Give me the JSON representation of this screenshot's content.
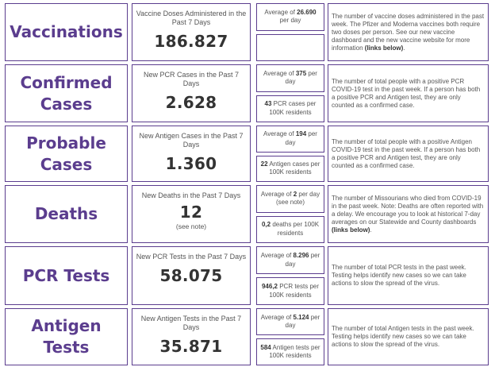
{
  "rows": [
    {
      "title_line1": "Vaccinations",
      "title_line2": "",
      "main_label": "Vaccine Doses Administered in the Past 7 Days",
      "main_value": "186.827",
      "main_note": "",
      "avg_prefix": "Average of ",
      "avg_value": "26.690",
      "avg_suffix": " per day",
      "avg_note": "",
      "per100k_value": "",
      "per100k_suffix": "",
      "desc_text": "The number of vaccine doses administered in the past week. The Pfizer and Moderna vaccines both require two doses per person. See our new vaccine dashboard and the new vaccine website for more information ",
      "desc_bold": "(links below)",
      "desc_end": "."
    },
    {
      "title_line1": "Confirmed",
      "title_line2": "Cases",
      "main_label": "New PCR Cases in the Past 7 Days",
      "main_value": "2.628",
      "main_note": "",
      "avg_prefix": "Average of ",
      "avg_value": "375",
      "avg_suffix": " per day",
      "avg_note": "",
      "per100k_value": "43",
      "per100k_suffix": " PCR cases per 100K residents",
      "desc_text": "The number of total people with a positive PCR COVID-19 test in the past week. If a person has both a positive PCR and Antigen test, they are only counted as a confirmed case.",
      "desc_bold": "",
      "desc_end": ""
    },
    {
      "title_line1": "Probable",
      "title_line2": "Cases",
      "main_label": "New Antigen Cases in the Past 7 Days",
      "main_value": "1.360",
      "main_note": "",
      "avg_prefix": "Average of ",
      "avg_value": "194",
      "avg_suffix": " per day",
      "avg_note": "",
      "per100k_value": "22",
      "per100k_suffix": " Antigen cases per 100K residents",
      "desc_text": "The number of total people with a positive Antigen COVID-19 test in the past week. If a person has both a positive PCR and Antigen test, they are only counted as a confirmed case.",
      "desc_bold": "",
      "desc_end": ""
    },
    {
      "title_line1": "Deaths",
      "title_line2": "",
      "main_label": "New Deaths in the Past 7 Days",
      "main_value": "12",
      "main_note": "(see note)",
      "avg_prefix": "Average of ",
      "avg_value": "2",
      "avg_suffix": " per day",
      "avg_note": "(see note)",
      "per100k_value": "0,2",
      "per100k_suffix": " deaths per 100K residents",
      "desc_text": "The number of Missourians who died from COVID-19 in the past week. Note: Deaths are often reported with a delay. We encourage you to look at historical 7-day averages on our Statewide and County dashboards ",
      "desc_bold": "(links below)",
      "desc_end": "."
    },
    {
      "title_line1": "PCR Tests",
      "title_line2": "",
      "main_label": "New PCR Tests in the Past 7 Days",
      "main_value": "58.075",
      "main_note": "",
      "avg_prefix": "Average of ",
      "avg_value": "8.296",
      "avg_suffix": " per day",
      "avg_note": "",
      "per100k_value": "946,2",
      "per100k_suffix": " PCR tests per 100K residents",
      "desc_text": "The number of total PCR tests in the past week. Testing helps identify new cases so we can take actions to slow the spread of the virus.",
      "desc_bold": "",
      "desc_end": ""
    },
    {
      "title_line1": "Antigen Tests",
      "title_line2": "",
      "main_label": "New Antigen Tests in the Past 7 Days",
      "main_value": "35.871",
      "main_note": "",
      "avg_prefix": "Average of ",
      "avg_value": "5.124",
      "avg_suffix": " per day",
      "avg_note": "",
      "per100k_value": "584",
      "per100k_suffix": " Antigen tests per 100K residents",
      "desc_text": "The number of total Antigen tests in the past week. Testing helps identify new cases so we can take actions to slow the spread of the virus.",
      "desc_bold": "",
      "desc_end": ""
    }
  ],
  "colors": {
    "accent": "#5b3d8e",
    "text": "#444444"
  }
}
